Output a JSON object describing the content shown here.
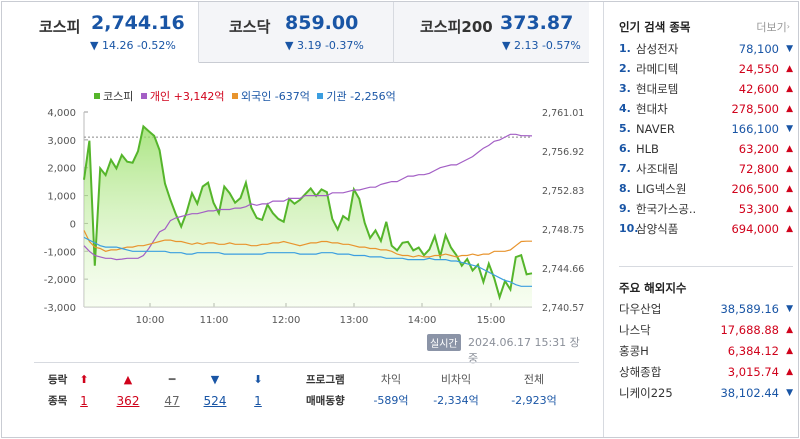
{
  "tabs": [
    {
      "name": "코스피",
      "value": "2,744.16",
      "change": "▼ 14.26 -0.52%"
    },
    {
      "name": "코스닥",
      "value": "859.00",
      "change": "▼ 3.19 -0.37%"
    },
    {
      "name": "코스피200",
      "value": "373.87",
      "change": "▼ 2.13 -0.57%"
    }
  ],
  "legend": {
    "kospi": "코스피",
    "individual": "개인 +3,142억",
    "foreign": "외국인 -637억",
    "institution": "기관 -2,256억"
  },
  "colors": {
    "kospi": "#55b52b",
    "individual": "#a35fc5",
    "foreign": "#e8942e",
    "institution": "#3b9ee0",
    "down": "#1955a5",
    "up": "#d0021b"
  },
  "chart_data": {
    "type": "line",
    "x_ticks": [
      "10:00",
      "11:00",
      "12:00",
      "13:00",
      "14:00",
      "15:00"
    ],
    "y_left_ticks": [
      "4,000",
      "3,000",
      "2,000",
      "1,000",
      "0",
      "-1,000",
      "-2,000",
      "-3,000"
    ],
    "y_right_ticks": [
      "2,761.01",
      "2,756.92",
      "2,752.83",
      "2,748.75",
      "2,744.66",
      "2,740.57"
    ],
    "x_range": [
      "09:00",
      "15:30"
    ],
    "y_left_range": [
      -3000,
      4000
    ],
    "y_right_range": [
      2740.57,
      2761.01
    ],
    "reference_line": 3100,
    "series": [
      {
        "name": "코스피",
        "axis": "right",
        "values": [
          2753.9,
          2758.0,
          2744.9,
          2755.1,
          2754.4,
          2756.0,
          2755.1,
          2756.5,
          2755.8,
          2755.7,
          2756.9,
          2759.5,
          2759.0,
          2758.5,
          2757.0,
          2753.5,
          2751.8,
          2750.3,
          2749.0,
          2750.5,
          2752.5,
          2751.4,
          2753.2,
          2753.6,
          2751.5,
          2750.4,
          2753.2,
          2752.5,
          2751.5,
          2752.0,
          2753.6,
          2751.0,
          2749.9,
          2749.7,
          2751.3,
          2750.4,
          2749.8,
          2749.5,
          2751.9,
          2751.4,
          2751.8,
          2752.4,
          2753.0,
          2752.2,
          2752.9,
          2752.6,
          2749.8,
          2748.7,
          2750.1,
          2749.7,
          2752.9,
          2751.9,
          2749.4,
          2747.8,
          2748.6,
          2747.5,
          2749.5,
          2747.0,
          2746.5,
          2747.3,
          2747.4,
          2746.5,
          2746.8,
          2746.0,
          2746.6,
          2748.0,
          2745.9,
          2748.1,
          2746.8,
          2746.0,
          2744.9,
          2745.6,
          2744.4,
          2745.0,
          2743.2,
          2745.1,
          2743.6,
          2741.6,
          2743.3,
          2742.4,
          2745.8,
          2746.0,
          2744.0,
          2744.1
        ]
      },
      {
        "name": "개인 +3,142억",
        "axis": "left",
        "values": [
          -800,
          -1000,
          -1150,
          -1200,
          -1250,
          -1250,
          -1300,
          -1280,
          -1250,
          -1250,
          -1250,
          -1150,
          -900,
          -600,
          -300,
          -200,
          100,
          200,
          250,
          300,
          350,
          350,
          400,
          450,
          450,
          500,
          500,
          500,
          550,
          550,
          600,
          700,
          650,
          700,
          700,
          800,
          800,
          800,
          900,
          900,
          900,
          1000,
          1000,
          1000,
          1000,
          1000,
          1100,
          1100,
          1100,
          1150,
          1200,
          1200,
          1250,
          1300,
          1300,
          1400,
          1450,
          1500,
          1500,
          1600,
          1700,
          1700,
          1750,
          1750,
          1800,
          1900,
          2000,
          2050,
          2100,
          2100,
          2200,
          2300,
          2400,
          2550,
          2700,
          2800,
          2950,
          3000,
          3100,
          3200,
          3200,
          3150,
          3150,
          3142
        ]
      },
      {
        "name": "외국인 -637억",
        "axis": "left",
        "values": [
          -250,
          -650,
          -850,
          -900,
          -1000,
          -950,
          -950,
          -900,
          -850,
          -850,
          -800,
          -800,
          -750,
          -700,
          -650,
          -600,
          -600,
          -650,
          -650,
          -700,
          -750,
          -700,
          -750,
          -700,
          -700,
          -750,
          -750,
          -700,
          -750,
          -750,
          -750,
          -800,
          -800,
          -750,
          -750,
          -700,
          -700,
          -650,
          -700,
          -750,
          -800,
          -750,
          -700,
          -700,
          -650,
          -650,
          -700,
          -700,
          -750,
          -750,
          -800,
          -850,
          -850,
          -900,
          -900,
          -950,
          -950,
          -1000,
          -1100,
          -1150,
          -1150,
          -1200,
          -1150,
          -1200,
          -1200,
          -1150,
          -1150,
          -1100,
          -1150,
          -1200,
          -1150,
          -1150,
          -1100,
          -1150,
          -1100,
          -1100,
          -1000,
          -1000,
          -1000,
          -950,
          -800,
          -650,
          -637,
          -637
        ]
      },
      {
        "name": "기관 -2,256억",
        "axis": "left",
        "values": [
          -500,
          -600,
          -700,
          -800,
          -850,
          -850,
          -850,
          -900,
          -950,
          -1000,
          -1000,
          -1000,
          -1000,
          -1000,
          -1000,
          -1000,
          -1050,
          -1050,
          -1050,
          -1100,
          -1100,
          -1050,
          -1050,
          -1050,
          -1050,
          -1050,
          -1100,
          -1100,
          -1100,
          -1100,
          -1100,
          -1100,
          -1100,
          -1100,
          -1050,
          -1050,
          -1050,
          -1050,
          -1050,
          -1050,
          -1100,
          -1100,
          -1100,
          -1100,
          -1050,
          -1050,
          -1050,
          -1100,
          -1100,
          -1100,
          -1150,
          -1150,
          -1150,
          -1200,
          -1200,
          -1200,
          -1250,
          -1250,
          -1250,
          -1250,
          -1300,
          -1300,
          -1300,
          -1300,
          -1250,
          -1300,
          -1300,
          -1300,
          -1350,
          -1350,
          -1400,
          -1450,
          -1500,
          -1550,
          -1650,
          -1750,
          -1850,
          -1950,
          -2050,
          -2100,
          -2200,
          -2256,
          -2256,
          -2256
        ]
      }
    ]
  },
  "realtime_label": "실시간",
  "timestamp": "2024.06.17 15:31 장중",
  "breadth": {
    "label1": "등락",
    "label2": "종목",
    "items": [
      {
        "symbol": "⬆",
        "count": "1",
        "tone": "red"
      },
      {
        "symbol": "▲",
        "count": "362",
        "tone": "red"
      },
      {
        "symbol": "━",
        "count": "47",
        "tone": "gray"
      },
      {
        "symbol": "▼",
        "count": "524",
        "tone": "blue"
      },
      {
        "symbol": "⬇",
        "count": "1",
        "tone": "blue"
      }
    ]
  },
  "program": {
    "label1": "프로그램",
    "label2": "매매동향",
    "columns": [
      {
        "header": "차익",
        "value": "-589억"
      },
      {
        "header": "비차익",
        "value": "-2,334억"
      },
      {
        "header": "전체",
        "value": "-2,923억"
      }
    ]
  },
  "popular": {
    "title": "인기 검색 종목",
    "more": "더보기",
    "items": [
      {
        "rank": "1.",
        "name": "삼성전자",
        "price": "78,100",
        "dir": "down"
      },
      {
        "rank": "2.",
        "name": "라메디텍",
        "price": "24,550",
        "dir": "up"
      },
      {
        "rank": "3.",
        "name": "현대로템",
        "price": "42,600",
        "dir": "up"
      },
      {
        "rank": "4.",
        "name": "현대차",
        "price": "278,500",
        "dir": "up"
      },
      {
        "rank": "5.",
        "name": "NAVER",
        "price": "166,100",
        "dir": "down"
      },
      {
        "rank": "6.",
        "name": "HLB",
        "price": "63,200",
        "dir": "up"
      },
      {
        "rank": "7.",
        "name": "사조대림",
        "price": "72,800",
        "dir": "up"
      },
      {
        "rank": "8.",
        "name": "LIG넥스원",
        "price": "206,500",
        "dir": "up"
      },
      {
        "rank": "9.",
        "name": "한국가스공..",
        "price": "53,300",
        "dir": "up"
      },
      {
        "rank": "10.",
        "name": "삼양식품",
        "price": "694,000",
        "dir": "up"
      }
    ]
  },
  "world": {
    "title": "주요 해외지수",
    "items": [
      {
        "name": "다우산업",
        "value": "38,589.16",
        "dir": "down"
      },
      {
        "name": "나스닥",
        "value": "17,688.88",
        "dir": "up"
      },
      {
        "name": "홍콩H",
        "value": "6,384.12",
        "dir": "up"
      },
      {
        "name": "상해종합",
        "value": "3,015.74",
        "dir": "up"
      },
      {
        "name": "니케이225",
        "value": "38,102.44",
        "dir": "down"
      }
    ]
  }
}
